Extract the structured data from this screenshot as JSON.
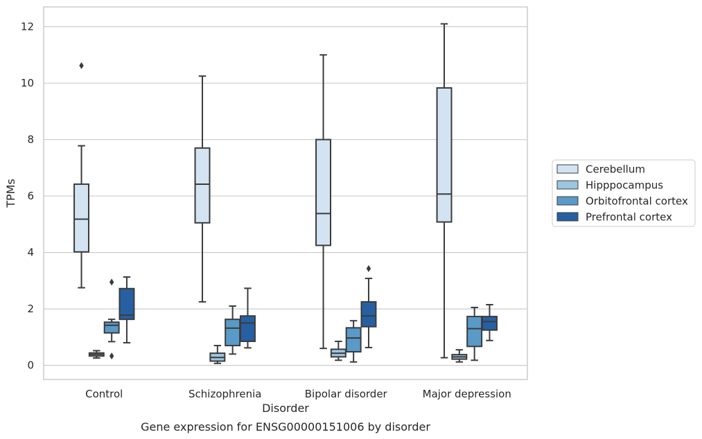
{
  "chart_data": {
    "type": "boxplot",
    "title": "",
    "caption": "Gene expression for ENSG00000151006 by disorder",
    "xlabel": "Disorder",
    "ylabel": "TPMs",
    "ylim": [
      -0.5,
      12.7
    ],
    "yticks": [
      0,
      2,
      4,
      6,
      8,
      10,
      12
    ],
    "grid": "horizontal",
    "legend_position": "right",
    "categories": [
      "Control",
      "Schizophrenia",
      "Bipolar disorder",
      "Major depression"
    ],
    "series": [
      {
        "name": "Cerebellum",
        "color": "#d3e3f2",
        "boxes": [
          {
            "whislo": 2.75,
            "q1": 4.02,
            "med": 5.18,
            "q3": 6.42,
            "whishi": 7.78,
            "fliers": [
              10.62
            ]
          },
          {
            "whislo": 2.25,
            "q1": 5.05,
            "med": 6.42,
            "q3": 7.7,
            "whishi": 10.25,
            "fliers": []
          },
          {
            "whislo": 0.6,
            "q1": 4.25,
            "med": 5.38,
            "q3": 8.0,
            "whishi": 11.0,
            "fliers": []
          },
          {
            "whislo": 0.27,
            "q1": 5.08,
            "med": 6.07,
            "q3": 9.83,
            "whishi": 12.1,
            "fliers": []
          }
        ]
      },
      {
        "name": "Hipppocampus",
        "color": "#9dc5df",
        "boxes": [
          {
            "whislo": 0.26,
            "q1": 0.33,
            "med": 0.39,
            "q3": 0.44,
            "whishi": 0.52,
            "fliers": []
          },
          {
            "whislo": 0.07,
            "q1": 0.15,
            "med": 0.28,
            "q3": 0.43,
            "whishi": 0.7,
            "fliers": []
          },
          {
            "whislo": 0.18,
            "q1": 0.3,
            "med": 0.43,
            "q3": 0.57,
            "whishi": 0.85,
            "fliers": []
          },
          {
            "whislo": 0.12,
            "q1": 0.22,
            "med": 0.3,
            "q3": 0.38,
            "whishi": 0.55,
            "fliers": []
          }
        ]
      },
      {
        "name": "Orbitofrontal cortex",
        "color": "#5a9ac8",
        "boxes": [
          {
            "whislo": 0.84,
            "q1": 1.15,
            "med": 1.42,
            "q3": 1.53,
            "whishi": 1.63,
            "fliers": [
              2.95,
              0.33
            ]
          },
          {
            "whislo": 0.4,
            "q1": 0.7,
            "med": 1.32,
            "q3": 1.63,
            "whishi": 2.1,
            "fliers": []
          },
          {
            "whislo": 0.12,
            "q1": 0.48,
            "med": 0.97,
            "q3": 1.33,
            "whishi": 1.58,
            "fliers": []
          },
          {
            "whislo": 0.18,
            "q1": 0.67,
            "med": 1.3,
            "q3": 1.73,
            "whishi": 2.05,
            "fliers": []
          }
        ]
      },
      {
        "name": "Prefrontal cortex",
        "color": "#2660a3",
        "boxes": [
          {
            "whislo": 0.8,
            "q1": 1.63,
            "med": 1.78,
            "q3": 2.72,
            "whishi": 3.13,
            "fliers": []
          },
          {
            "whislo": 0.62,
            "q1": 0.85,
            "med": 1.5,
            "q3": 1.75,
            "whishi": 2.73,
            "fliers": []
          },
          {
            "whislo": 0.63,
            "q1": 1.37,
            "med": 1.75,
            "q3": 2.25,
            "whishi": 3.08,
            "fliers": [
              3.43
            ]
          },
          {
            "whislo": 0.88,
            "q1": 1.25,
            "med": 1.55,
            "q3": 1.73,
            "whishi": 2.15,
            "fliers": []
          }
        ]
      }
    ]
  }
}
